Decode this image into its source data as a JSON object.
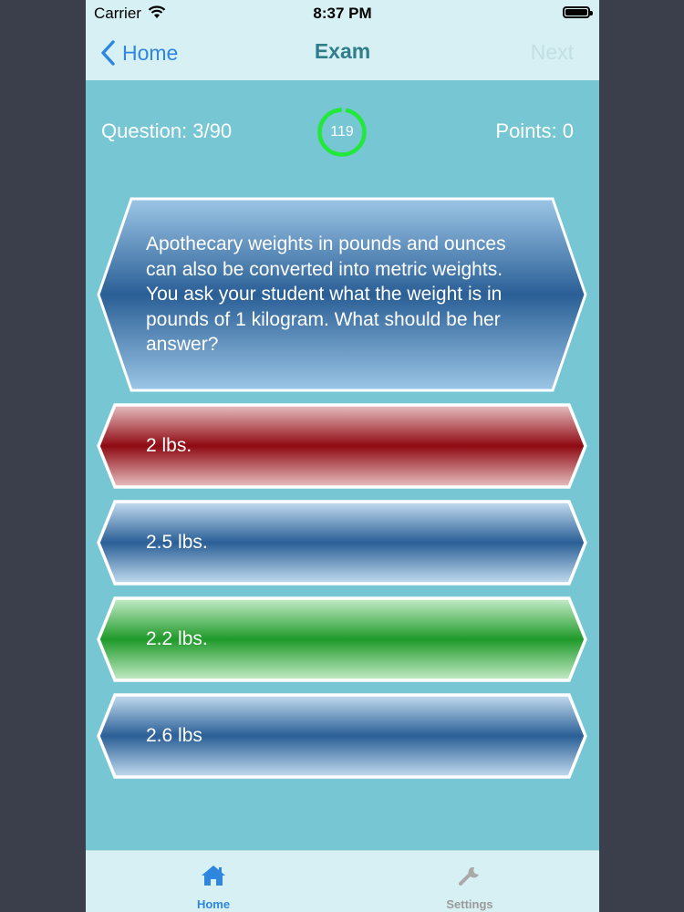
{
  "status_bar": {
    "carrier": "Carrier",
    "time": "8:37 PM"
  },
  "nav": {
    "back_label": "Home",
    "title": "Exam",
    "next_label": "Next"
  },
  "score": {
    "question_counter": "Question: 3/90",
    "timer_value": "119",
    "points": "Points: 0"
  },
  "question": {
    "text": " Apothecary weights in pounds and ounces can also be converted into metric weights. You ask your student what the weight is in pounds of 1 kilogram. What should be her answer?"
  },
  "answers": [
    {
      "label": "2 lbs.",
      "state": "wrong"
    },
    {
      "label": "2.5 lbs.",
      "state": "neutral"
    },
    {
      "label": "2.2 lbs.",
      "state": "correct"
    },
    {
      "label": "2.6 lbs",
      "state": "neutral"
    }
  ],
  "tabs": [
    {
      "label": "Home",
      "icon": "home-icon",
      "active": true
    },
    {
      "label": "Settings",
      "icon": "wrench-icon",
      "active": false
    }
  ],
  "colors": {
    "accent": "#2e86de",
    "background": "#76c6d3",
    "bar": "#d6f0f4",
    "timer_ring": "#22e83a",
    "wrong": "#8e0a12",
    "correct": "#1f9a2a",
    "neutral": "#2a5f96"
  }
}
